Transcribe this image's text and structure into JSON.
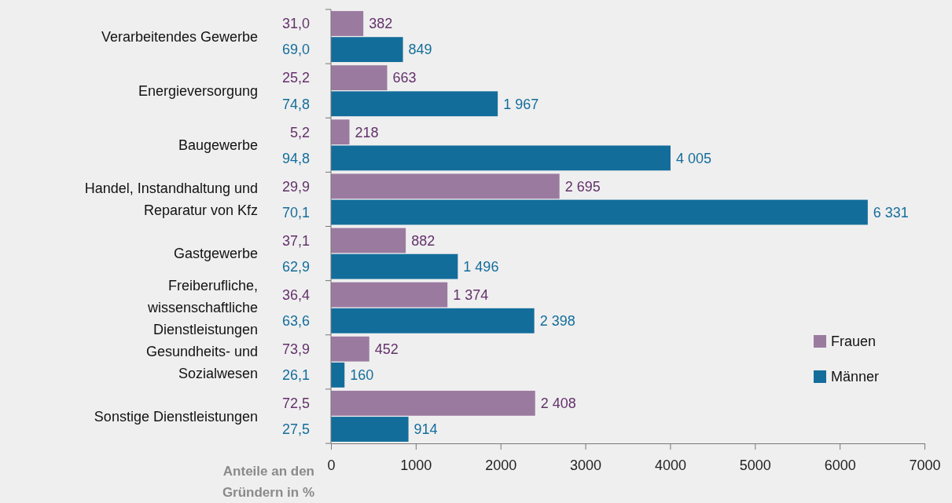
{
  "chart_data": {
    "type": "bar",
    "orientation": "horizontal",
    "categories": [
      "Verarbeitendes Gewerbe",
      "Energieversorgung",
      "Baugewerbe",
      "Handel, Instandhaltung und Reparatur von Kfz",
      "Gastgewerbe",
      "Freiberufliche, wissenschaftliche Dienstleistungen",
      "Gesundheits- und Sozialwesen",
      "Sonstige Dienstleistungen"
    ],
    "series": [
      {
        "name": "Frauen",
        "color": "#9b7aa0",
        "values": [
          382,
          663,
          218,
          2695,
          882,
          1374,
          452,
          2408
        ],
        "value_labels": [
          "382",
          "663",
          "218",
          "2 695",
          "882",
          "1 374",
          "452",
          "2 408"
        ]
      },
      {
        "name": "Männer",
        "color": "#136d9b",
        "values": [
          849,
          1967,
          4005,
          6331,
          1496,
          2398,
          160,
          914
        ],
        "value_labels": [
          "849",
          "1 967",
          "4 005",
          "6 331",
          "1 496",
          "2 398",
          "160",
          "914"
        ]
      }
    ],
    "xlim": [
      0,
      7000
    ],
    "xticks": [
      0,
      1000,
      2000,
      3000,
      4000,
      5000,
      6000,
      7000
    ],
    "grid": false,
    "legend": "right",
    "annotations": [
      "Anteile an den Gründern in %",
      "31,0",
      "69,0",
      "25,2",
      "74,8",
      "5,2",
      "94,8",
      "29,9",
      "70,1",
      "37,1",
      "62,9",
      "36,4",
      "63,6",
      "73,9",
      "26,1",
      "72,5",
      "27,5"
    ]
  }
}
